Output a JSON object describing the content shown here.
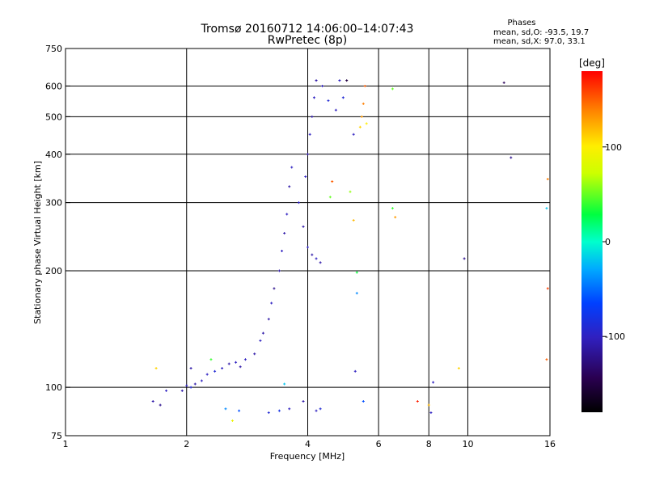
{
  "chart_data": {
    "type": "scatter",
    "title": "Tromsø 20160712 14:06:00–14:07:43",
    "subtitle": "RwPretec (8p)",
    "stats": {
      "header": "Phases",
      "line1": "mean, sd,O: -93.5, 19.7",
      "line2": "mean, sd,X:  97.0, 33.1"
    },
    "xlabel": "Frequency [MHz]",
    "ylabel": "Stationary phase Virtual Height [km]",
    "xscale": "log",
    "yscale": "log",
    "xlim": [
      1,
      16
    ],
    "ylim": [
      75,
      750
    ],
    "xticks": [
      1,
      2,
      4,
      6,
      8,
      10,
      16
    ],
    "yticks": [
      75,
      100,
      200,
      300,
      400,
      500,
      600,
      750
    ],
    "colorbar": {
      "label": "[deg]",
      "range": [
        -180,
        180
      ],
      "ticks": [
        100,
        0,
        -100
      ]
    },
    "grid": true,
    "points": [
      {
        "f": 1.65,
        "h": 92,
        "p": -110
      },
      {
        "f": 1.72,
        "h": 90,
        "p": -120
      },
      {
        "f": 1.78,
        "h": 98,
        "p": -100
      },
      {
        "f": 1.68,
        "h": 112,
        "p": 110
      },
      {
        "f": 1.95,
        "h": 98,
        "p": -110
      },
      {
        "f": 2.0,
        "h": 101,
        "p": -100
      },
      {
        "f": 2.05,
        "h": 100,
        "p": -90
      },
      {
        "f": 2.1,
        "h": 102,
        "p": -110
      },
      {
        "f": 2.05,
        "h": 112,
        "p": -110
      },
      {
        "f": 2.18,
        "h": 104,
        "p": -100
      },
      {
        "f": 2.25,
        "h": 108,
        "p": -100
      },
      {
        "f": 2.3,
        "h": 118,
        "p": 40
      },
      {
        "f": 2.35,
        "h": 110,
        "p": -90
      },
      {
        "f": 2.45,
        "h": 112,
        "p": -100
      },
      {
        "f": 2.55,
        "h": 115,
        "p": -110
      },
      {
        "f": 2.65,
        "h": 116,
        "p": -100
      },
      {
        "f": 2.72,
        "h": 113,
        "p": -110
      },
      {
        "f": 2.8,
        "h": 118,
        "p": -100
      },
      {
        "f": 2.95,
        "h": 122,
        "p": -110
      },
      {
        "f": 3.05,
        "h": 132,
        "p": -100
      },
      {
        "f": 3.1,
        "h": 138,
        "p": -110
      },
      {
        "f": 3.2,
        "h": 150,
        "p": -110
      },
      {
        "f": 3.25,
        "h": 165,
        "p": -100
      },
      {
        "f": 3.3,
        "h": 180,
        "p": -120
      },
      {
        "f": 3.4,
        "h": 200,
        "p": -110
      },
      {
        "f": 3.45,
        "h": 225,
        "p": -100
      },
      {
        "f": 3.5,
        "h": 250,
        "p": -110
      },
      {
        "f": 3.55,
        "h": 280,
        "p": -100
      },
      {
        "f": 3.6,
        "h": 330,
        "p": -110
      },
      {
        "f": 3.65,
        "h": 370,
        "p": -100
      },
      {
        "f": 3.8,
        "h": 300,
        "p": -100
      },
      {
        "f": 3.9,
        "h": 260,
        "p": -110
      },
      {
        "f": 4.0,
        "h": 230,
        "p": -100
      },
      {
        "f": 4.1,
        "h": 220,
        "p": -110
      },
      {
        "f": 4.2,
        "h": 215,
        "p": -100
      },
      {
        "f": 4.3,
        "h": 210,
        "p": -110
      },
      {
        "f": 3.95,
        "h": 350,
        "p": -100
      },
      {
        "f": 4.0,
        "h": 400,
        "p": -110
      },
      {
        "f": 4.05,
        "h": 450,
        "p": -100
      },
      {
        "f": 4.1,
        "h": 500,
        "p": -110
      },
      {
        "f": 4.15,
        "h": 560,
        "p": -100
      },
      {
        "f": 4.2,
        "h": 620,
        "p": -110
      },
      {
        "f": 4.35,
        "h": 600,
        "p": -100
      },
      {
        "f": 4.5,
        "h": 550,
        "p": -90
      },
      {
        "f": 4.7,
        "h": 520,
        "p": -100
      },
      {
        "f": 4.8,
        "h": 620,
        "p": -100
      },
      {
        "f": 4.9,
        "h": 560,
        "p": -90
      },
      {
        "f": 5.0,
        "h": 620,
        "p": -150
      },
      {
        "f": 5.2,
        "h": 450,
        "p": -100
      },
      {
        "f": 5.4,
        "h": 470,
        "p": 110
      },
      {
        "f": 5.45,
        "h": 500,
        "p": 130
      },
      {
        "f": 5.5,
        "h": 540,
        "p": 140
      },
      {
        "f": 5.55,
        "h": 600,
        "p": 150
      },
      {
        "f": 5.6,
        "h": 480,
        "p": 100
      },
      {
        "f": 4.6,
        "h": 340,
        "p": 150
      },
      {
        "f": 4.55,
        "h": 310,
        "p": 50
      },
      {
        "f": 5.1,
        "h": 320,
        "p": 60
      },
      {
        "f": 5.2,
        "h": 270,
        "p": 120
      },
      {
        "f": 5.25,
        "h": 110,
        "p": -100
      },
      {
        "f": 5.3,
        "h": 198,
        "p": 30
      },
      {
        "f": 5.3,
        "h": 175,
        "p": -40
      },
      {
        "f": 5.5,
        "h": 92,
        "p": -60
      },
      {
        "f": 6.5,
        "h": 290,
        "p": 40
      },
      {
        "f": 6.6,
        "h": 275,
        "p": 130
      },
      {
        "f": 6.5,
        "h": 590,
        "p": 50
      },
      {
        "f": 7.5,
        "h": 92,
        "p": 170
      },
      {
        "f": 8.0,
        "h": 90,
        "p": 120
      },
      {
        "f": 8.2,
        "h": 103,
        "p": -100
      },
      {
        "f": 8.1,
        "h": 86,
        "p": -100
      },
      {
        "f": 9.5,
        "h": 112,
        "p": 110
      },
      {
        "f": 9.8,
        "h": 215,
        "p": -120
      },
      {
        "f": 12.3,
        "h": 612,
        "p": -140
      },
      {
        "f": 12.8,
        "h": 392,
        "p": -120
      },
      {
        "f": 15.7,
        "h": 290,
        "p": -20
      },
      {
        "f": 15.8,
        "h": 180,
        "p": 160
      },
      {
        "f": 15.7,
        "h": 118,
        "p": 150
      },
      {
        "f": 15.8,
        "h": 345,
        "p": 140
      },
      {
        "f": 2.5,
        "h": 88,
        "p": -40
      },
      {
        "f": 2.7,
        "h": 87,
        "p": -60
      },
      {
        "f": 3.2,
        "h": 86,
        "p": -90
      },
      {
        "f": 3.4,
        "h": 87,
        "p": -80
      },
      {
        "f": 3.6,
        "h": 88,
        "p": -100
      },
      {
        "f": 3.9,
        "h": 92,
        "p": -110
      },
      {
        "f": 4.2,
        "h": 87,
        "p": -100
      },
      {
        "f": 4.3,
        "h": 88,
        "p": -90
      },
      {
        "f": 2.6,
        "h": 82,
        "p": 90
      },
      {
        "f": 3.5,
        "h": 102,
        "p": -20
      }
    ]
  }
}
